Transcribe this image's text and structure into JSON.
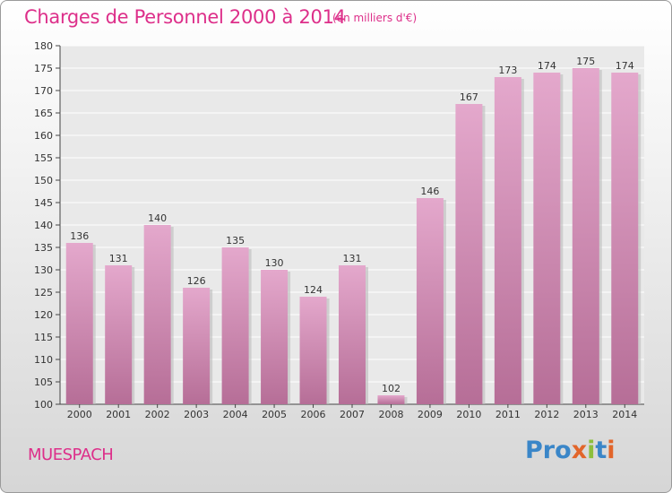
{
  "chart_data": {
    "type": "bar",
    "title": "Charges de Personnel 2000 à 2014",
    "subtitle": "(en milliers d'€)",
    "categories": [
      "2000",
      "2001",
      "2002",
      "2003",
      "2004",
      "2005",
      "2006",
      "2007",
      "2008",
      "2009",
      "2010",
      "2011",
      "2012",
      "2013",
      "2014"
    ],
    "values": [
      136,
      131,
      140,
      126,
      135,
      130,
      124,
      131,
      102,
      146,
      167,
      173,
      174,
      175,
      174
    ],
    "ylim": [
      100,
      180
    ],
    "yticks": [
      100,
      105,
      110,
      115,
      120,
      125,
      130,
      135,
      140,
      145,
      150,
      155,
      160,
      165,
      170,
      175,
      180
    ],
    "grid": true,
    "bar_color_top": "#e4a8cc",
    "bar_color_bottom": "#b66e97"
  },
  "footer": {
    "commune": "MUESPACH",
    "logo": "Proxiti"
  },
  "colors": {
    "accent": "#dd2f8a",
    "logo_letters": [
      "#3a86c8",
      "#3a86c8",
      "#3a86c8",
      "#e2652a",
      "#8cbf3c",
      "#3a86c8",
      "#e2652a"
    ]
  }
}
